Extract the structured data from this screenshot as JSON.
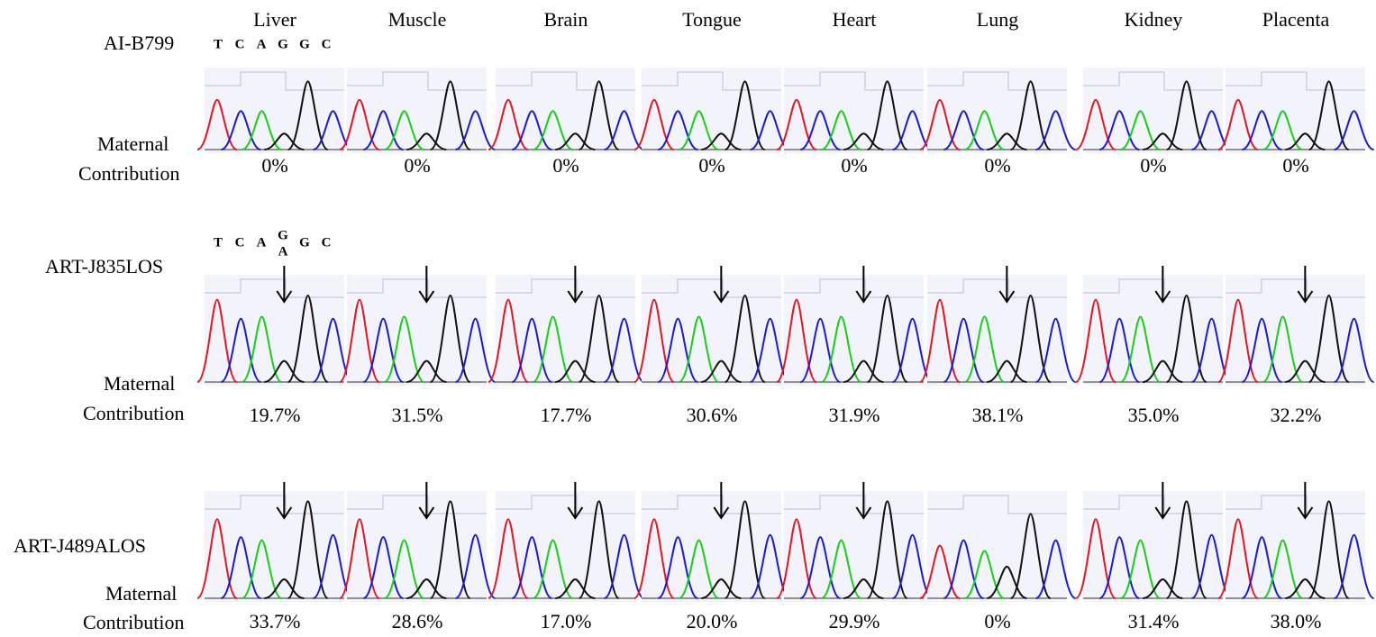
{
  "tissues": [
    "Liver",
    "Muscle",
    "Brain",
    "Tongue",
    "Heart",
    "Lung",
    "Kidney",
    "Placenta"
  ],
  "rows": [
    {
      "label": "AI-B799",
      "sequence": [
        [
          "T"
        ],
        [
          "C"
        ],
        [
          "A"
        ],
        [
          "G"
        ],
        [
          "G"
        ],
        [
          "C"
        ]
      ],
      "maternal_label": [
        "Maternal",
        "Contribution"
      ],
      "values": [
        "0%",
        "0%",
        "0%",
        "0%",
        "0%",
        "0%",
        "0%",
        "0%"
      ]
    },
    {
      "label": "ART-J835LOS",
      "sequence": [
        [
          "T"
        ],
        [
          "C"
        ],
        [
          "A"
        ],
        [
          "G",
          "A"
        ],
        [
          "G"
        ],
        [
          "C"
        ]
      ],
      "maternal_label": [
        "Maternal",
        "Contribution"
      ],
      "values": [
        "19.7%",
        "31.5%",
        "17.7%",
        "30.6%",
        "31.9%",
        "38.1%",
        "35.0%",
        "32.2%"
      ]
    },
    {
      "label": "ART-J489ALOS",
      "maternal_label": [
        "Maternal",
        "Contribution"
      ],
      "values": [
        "33.7%",
        "28.6%",
        "17.0%",
        "20.0%",
        "29.9%",
        "0%",
        "31.4%",
        "38.0%"
      ]
    }
  ]
}
